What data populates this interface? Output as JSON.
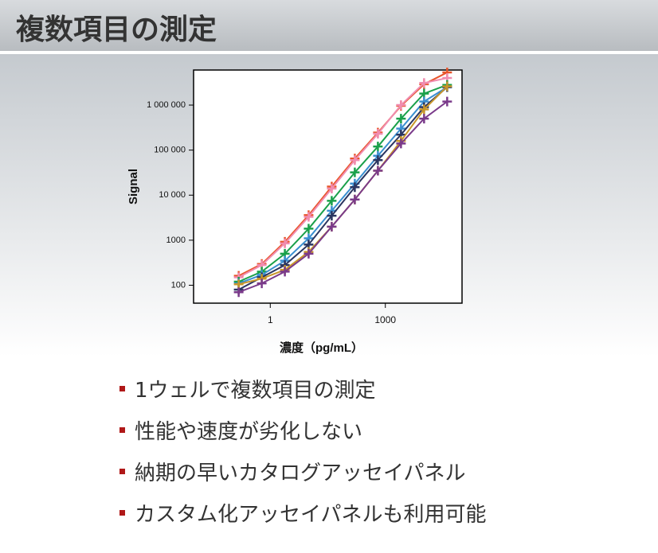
{
  "header": {
    "title": "複数項目の測定"
  },
  "chart_data": {
    "type": "line",
    "x_label": "濃度（pg/mL）",
    "y_label": "Signal",
    "xscale": "log",
    "yscale": "log",
    "x": [
      0.15,
      0.6,
      2.4,
      10,
      40,
      160,
      640,
      2560,
      10240,
      40960
    ],
    "xlim": [
      0.01,
      100000
    ],
    "xticks": [
      1,
      1000
    ],
    "ylim": [
      40,
      6000000
    ],
    "yticks": [
      {
        "value": 100,
        "label": "100"
      },
      {
        "value": 1000,
        "label": "1000"
      },
      {
        "value": 10000,
        "label": "10 000"
      },
      {
        "value": 100000,
        "label": "100 000"
      },
      {
        "value": 1000000,
        "label": "1 000 000"
      }
    ],
    "series": [
      {
        "color": "#e8552a",
        "values": [
          162,
          297,
          920,
          3600,
          15500,
          65000,
          245000,
          960000,
          2900000,
          5300000
        ]
      },
      {
        "color": "#f08cb0",
        "values": [
          150,
          280,
          850,
          3300,
          14000,
          60000,
          230000,
          1000000,
          3100000,
          4000000
        ]
      },
      {
        "color": "#1aa04a",
        "values": [
          120,
          200,
          500,
          1800,
          7500,
          32000,
          120000,
          500000,
          1800000,
          2800000
        ]
      },
      {
        "color": "#3a8fd0",
        "values": [
          110,
          170,
          350,
          1100,
          4500,
          18000,
          75000,
          300000,
          1200000,
          2500000
        ]
      },
      {
        "color": "#2a3560",
        "values": [
          80,
          150,
          280,
          800,
          3500,
          15000,
          60000,
          220000,
          900000,
          2500000
        ]
      },
      {
        "color": "#c8962a",
        "values": [
          105,
          140,
          220,
          550,
          2000,
          8000,
          35000,
          160000,
          800000,
          2600000
        ]
      },
      {
        "color": "#7a3a8a",
        "values": [
          70,
          110,
          200,
          500,
          2000,
          8000,
          35000,
          140000,
          500000,
          1200000
        ]
      }
    ]
  },
  "bullets": [
    "1ウェルで複数項目の測定",
    "性能や速度が劣化しない",
    "納期の早いカタログアッセイパネル",
    "カスタム化アッセイパネルも利用可能"
  ]
}
